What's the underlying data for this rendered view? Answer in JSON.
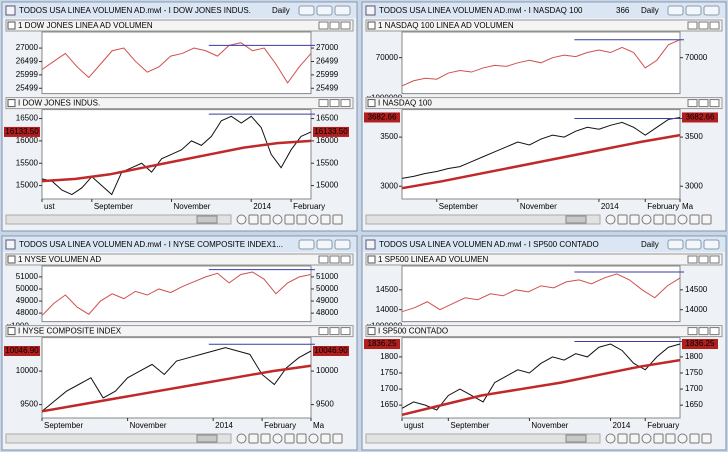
{
  "windows": [
    {
      "title": "TODOS USA LINEA VOLUMEN AD.mwl - I DOW JONES INDUS.",
      "timeframe": "Daily",
      "panes": [
        {
          "title": "1 DOW JONES LINEA AD VOLUMEN",
          "ylim": [
            25300,
            27600
          ],
          "yticks": [
            27000,
            26499,
            25999,
            25499
          ],
          "values": [
            26200,
            26500,
            26800,
            26300,
            25900,
            26400,
            26900,
            27000,
            26500,
            26100,
            26300,
            26700,
            26800,
            27000,
            26900,
            26700,
            27100,
            27200,
            26900,
            27000,
            26400,
            25700,
            26300,
            26800
          ],
          "level": 27100
        },
        {
          "title": "I DOW JONES INDUS.",
          "ylim": [
            14700,
            16700
          ],
          "yticks": [
            16500,
            16000,
            15500,
            15000
          ],
          "values": [
            15150,
            15100,
            14900,
            14800,
            14950,
            15200,
            15000,
            14800,
            15300,
            15400,
            15500,
            15300,
            15600,
            15700,
            15800,
            16000,
            15900,
            16100,
            16450,
            16550,
            16400,
            16550,
            16300,
            15700,
            15400,
            15800,
            16100,
            16200
          ],
          "ma": [
            15100,
            15150,
            15250,
            15400,
            15550,
            15700,
            15850,
            15950,
            16000
          ],
          "level": 16600,
          "last_label": "16133.50"
        }
      ],
      "xticks": [
        {
          "value": 0,
          "label": "ust"
        },
        {
          "value": 5,
          "label": "September"
        },
        {
          "value": 13,
          "label": "November"
        },
        {
          "value": 21,
          "label": "2014"
        },
        {
          "value": 25,
          "label": "February"
        }
      ]
    },
    {
      "title": "TODOS USA LINEA VOLUMEN AD.mwl - I NASDAQ 100",
      "code": "366",
      "timeframe": "Daily",
      "panes": [
        {
          "title": "1 NASDAQ 100 LINEA AD VOLUMEN",
          "multiplier": "x1000000",
          "ylim": [
            63000,
            75000
          ],
          "yticks": [
            70000
          ],
          "values": [
            64500,
            65500,
            66000,
            65800,
            67000,
            67500,
            67200,
            68000,
            68500,
            68300,
            69000,
            69500,
            69000,
            70000,
            70500,
            70200,
            71000,
            71500,
            71000,
            72000,
            71000,
            68000,
            69500,
            72500,
            73500
          ],
          "level": 73500
        },
        {
          "title": "I NASDAQ 100",
          "ylim": [
            2870,
            3780
          ],
          "yticks": [
            3500,
            3000
          ],
          "values": [
            3080,
            3100,
            3130,
            3150,
            3180,
            3200,
            3250,
            3300,
            3350,
            3400,
            3450,
            3420,
            3480,
            3520,
            3500,
            3560,
            3600,
            3580,
            3620,
            3650,
            3600,
            3520,
            3600,
            3680,
            3700
          ],
          "ma": [
            2980,
            3050,
            3130,
            3210,
            3290,
            3370,
            3450,
            3520
          ],
          "level": 3690,
          "last_label": "3682.66"
        }
      ],
      "xticks": [
        {
          "value": 3,
          "label": "September"
        },
        {
          "value": 10,
          "label": "November"
        },
        {
          "value": 17,
          "label": "2014"
        },
        {
          "value": 21,
          "label": "February"
        },
        {
          "value": 24,
          "label": "Ma"
        }
      ]
    },
    {
      "title": "TODOS USA LINEA VOLUMEN AD.mwl - I NYSE COMPOSITE INDEX1...",
      "panes": [
        {
          "title": "1 NYSE VOLUMEN AD",
          "multiplier": "x1000",
          "ylim": [
            47300,
            51900
          ],
          "yticks": [
            51000,
            50000,
            49000,
            48000
          ],
          "values": [
            47800,
            48800,
            49500,
            48500,
            47900,
            49000,
            49600,
            49200,
            49800,
            49500,
            50000,
            49700,
            50200,
            50600,
            51000,
            51300,
            50500,
            51200,
            51400,
            50800,
            49600,
            50500,
            51000,
            51200
          ],
          "level": 51600
        },
        {
          "title": "I NYSE COMPOSITE INDEX",
          "ylim": [
            9300,
            10500
          ],
          "yticks": [
            10000,
            9500
          ],
          "values": [
            9400,
            9550,
            9700,
            9800,
            9900,
            9600,
            9700,
            9900,
            10000,
            10100,
            9950,
            10150,
            10200,
            10250,
            10300,
            10350,
            10300,
            10250,
            9950,
            9800,
            10050,
            10200,
            10300
          ],
          "ma": [
            9400,
            9500,
            9600,
            9700,
            9800,
            9900,
            10000,
            10080
          ],
          "level": 10400,
          "last_label": "10046.90"
        }
      ],
      "xticks": [
        {
          "value": 0,
          "label": "September"
        },
        {
          "value": 7,
          "label": "November"
        },
        {
          "value": 14,
          "label": "2014"
        },
        {
          "value": 18,
          "label": "February"
        },
        {
          "value": 22,
          "label": "Ma"
        }
      ]
    },
    {
      "title": "TODOS USA LINEA VOLUMEN AD.mwl - I SP500 CONTADO",
      "timeframe": "Daily",
      "panes": [
        {
          "title": "1 SP500 LINEA AD VOLUMEN",
          "multiplier": "x1000000",
          "ylim": [
            13700,
            15100
          ],
          "yticks": [
            14500,
            14000
          ],
          "values": [
            13950,
            14050,
            14200,
            14000,
            14150,
            14300,
            14250,
            14400,
            14350,
            14500,
            14450,
            14600,
            14550,
            14700,
            14750,
            14650,
            14800,
            14900,
            14750,
            14500,
            14300,
            14600,
            14800
          ],
          "level": 14950
        },
        {
          "title": "I SP500 CONTADO",
          "ylim": [
            1610,
            1860
          ],
          "yticks": [
            1800,
            1750,
            1700,
            1650
          ],
          "values": [
            1640,
            1660,
            1650,
            1635,
            1680,
            1700,
            1680,
            1660,
            1720,
            1740,
            1760,
            1750,
            1780,
            1800,
            1790,
            1810,
            1800,
            1830,
            1840,
            1820,
            1780,
            1760,
            1800,
            1830,
            1840
          ],
          "ma": [
            1620,
            1650,
            1680,
            1700,
            1720,
            1745,
            1770,
            1790
          ],
          "level": 1848,
          "last_label": "1836.25"
        }
      ],
      "xticks": [
        {
          "value": 0,
          "label": "ugust"
        },
        {
          "value": 4,
          "label": "September"
        },
        {
          "value": 11,
          "label": "November"
        },
        {
          "value": 18,
          "label": "2014"
        },
        {
          "value": 21,
          "label": "February"
        }
      ]
    }
  ]
}
